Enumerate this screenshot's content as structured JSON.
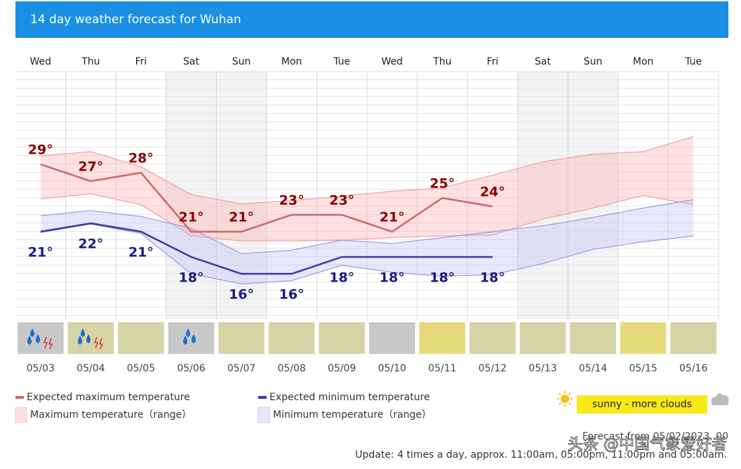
{
  "header": {
    "title": "14 day weather forecast for Wuhan"
  },
  "chart_data": {
    "type": "line",
    "categories": [
      "Wed",
      "Thu",
      "Fri",
      "Sat",
      "Sun",
      "Mon",
      "Tue",
      "Wed",
      "Thu",
      "Fri",
      "Sat",
      "Sun",
      "Mon",
      "Tue"
    ],
    "dates": [
      "05/03",
      "05/04",
      "05/05",
      "05/06",
      "05/07",
      "05/08",
      "05/09",
      "05/10",
      "05/11",
      "05/12",
      "05/13",
      "05/14",
      "05/15",
      "05/16"
    ],
    "ylim": [
      10,
      40
    ],
    "shaded_columns": [
      3,
      4,
      10,
      11
    ],
    "series": [
      {
        "name": "Expected maximum temperature",
        "color": "#cc6666",
        "label_color": "#8b0000",
        "values": [
          29,
          27,
          28,
          21,
          21,
          23,
          23,
          21,
          25,
          24,
          null,
          null,
          null,
          null
        ],
        "value_labels": [
          "29°",
          "27°",
          "28°",
          "21°",
          "21°",
          "23°",
          "23°",
          "21°",
          "25°",
          "24°",
          null,
          null,
          null,
          null
        ]
      },
      {
        "name": "Expected minimum temperature",
        "color": "#3a3aa8",
        "label_color": "#1a1a80",
        "values": [
          21,
          22,
          21,
          18,
          16,
          16,
          18,
          18,
          18,
          18,
          null,
          null,
          null,
          null
        ],
        "value_labels": [
          "21°",
          "22°",
          "21°",
          "18°",
          "16°",
          "16°",
          "18°",
          "18°",
          "18°",
          "18°",
          null,
          null,
          null,
          null
        ]
      }
    ],
    "ranges": [
      {
        "name": "Maximum temperature（range）",
        "color": "#f2a0a0",
        "fill": "rgba(255,170,170,0.35)",
        "upper": [
          30,
          30.5,
          28.7,
          25.4,
          24.3,
          24.7,
          25.2,
          25.8,
          26.2,
          27.7,
          29.3,
          30.2,
          30.5,
          32.3
        ],
        "lower": [
          24.9,
          25.5,
          24.2,
          20.5,
          19.9,
          19.9,
          20,
          20.3,
          20.5,
          20.6,
          22.5,
          23.8,
          25.3,
          24.2
        ]
      },
      {
        "name": "Minimum temperature（range）",
        "color": "#9a9ae8",
        "fill": "rgba(190,190,245,0.35)",
        "upper": [
          22.9,
          23.5,
          22.8,
          21.4,
          18.4,
          18.8,
          20,
          19.6,
          20.3,
          21,
          21.7,
          22.7,
          23.8,
          24.8
        ],
        "lower": [
          20.9,
          21.9,
          20.8,
          16,
          14.8,
          15.2,
          17,
          16.2,
          15.7,
          15.9,
          17.2,
          18.9,
          19.8,
          20.5
        ]
      }
    ],
    "tile_colors": [
      "#c8c8c8",
      "#d6d3a6",
      "#d6d3a6",
      "#c8c8c8",
      "#d6d3a6",
      "#d6d3a6",
      "#d6d3a6",
      "#c8c8c8",
      "#e6da7c",
      "#d6d3a6",
      "#d6d3a6",
      "#d6d3a6",
      "#e6da7c",
      "#d6d3a6"
    ]
  },
  "weather_legend": {
    "label": "sunny - more clouds",
    "color": "#fbe81a"
  },
  "footer": {
    "forecast": "Forecast from 05/02/2023, 00",
    "update": "Update: 4 times a day, approx. 11:00am, 05:00pm, 11:00pm and 05:00am.",
    "watermark": "头条 @中国气象爱好者"
  }
}
